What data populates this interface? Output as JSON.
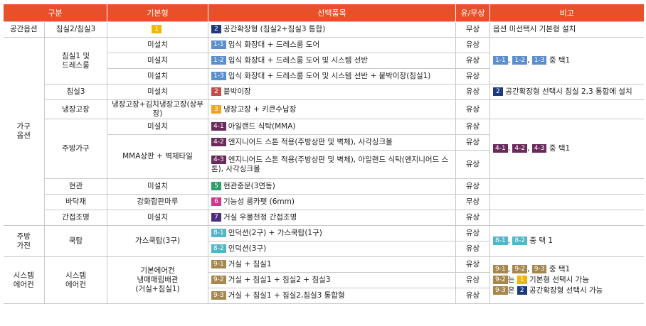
{
  "header": [
    "구분",
    "기본형",
    "선택품목",
    "유/무상",
    "비고"
  ],
  "rows": [
    {
      "group": "공간옵션",
      "sub": "침실2/침실3",
      "base_badge": {
        "code": "1",
        "color": "#f2b705"
      },
      "item_badge": {
        "code": "2",
        "color": "#1d3b7c"
      },
      "item": "공간확장형 (침실2+침실3 통합)",
      "pay": "무상",
      "note": [
        [
          {
            "text": "옵션 미선택시 기본형 설치"
          }
        ]
      ]
    },
    {
      "group": "가구\n옵션",
      "sub": "침실1 및\n드레스룸",
      "base": "미설치",
      "item_badge": {
        "code": "1-1",
        "color": "#5b8fcc"
      },
      "item": "입식 화장대 + 드레스룸 도어",
      "pay": "유상",
      "note": [
        [
          {
            "badge": {
              "code": "1-1",
              "color": "#5b8fcc"
            }
          },
          {
            "text": ", "
          },
          {
            "badge": {
              "code": "1-2",
              "color": "#5b8fcc"
            }
          },
          {
            "text": ", "
          },
          {
            "badge": {
              "code": "1-3",
              "color": "#5b8fcc"
            }
          },
          {
            "text": " 중 택1"
          }
        ]
      ]
    },
    {
      "base": "미설치",
      "item_badge": {
        "code": "1-2",
        "color": "#5b8fcc"
      },
      "item": "입식 화장대 + 드레스룸 도어 및 시스템 선반",
      "pay": "유상"
    },
    {
      "base": "미설치",
      "item_badge": {
        "code": "1-3",
        "color": "#5b8fcc"
      },
      "item": "입식 화장대 + 드레스룸 도어 및 시스템 선반 + 붙박이장(침실1)",
      "pay": "유상"
    },
    {
      "sub": "침실3",
      "base": "미설치",
      "item_badge": {
        "code": "2",
        "color": "#c24d49"
      },
      "item": "붙박이장",
      "pay": "유상",
      "note": [
        [
          {
            "badge": {
              "code": "2",
              "color": "#1d3b7c"
            }
          },
          {
            "text": " 공간확장형 선택시 침실 2,3 통합에 설치"
          }
        ]
      ]
    },
    {
      "sub": "냉장고장",
      "base": "냉장고장+김치냉장고장(상부장)",
      "item_badge": {
        "code": "3",
        "color": "#f0a424"
      },
      "item": "냉장고장 + 키큰수납장",
      "pay": "유상"
    },
    {
      "sub": "주방가구",
      "base": "미설치",
      "item_badge": {
        "code": "4-1",
        "color": "#6a2a5c"
      },
      "item": "아일랜드 식탁(MMA)",
      "pay": "유상",
      "note": [
        [
          {
            "badge": {
              "code": "4-1",
              "color": "#6a2a5c"
            }
          },
          {
            "text": ", "
          },
          {
            "badge": {
              "code": "4-2",
              "color": "#6a2a5c"
            }
          },
          {
            "text": ", "
          },
          {
            "badge": {
              "code": "4-3",
              "color": "#6a2a5c"
            }
          },
          {
            "text": " 중 택1"
          }
        ]
      ]
    },
    {
      "base": "MMA상판 + 벽체타일",
      "item_badge": {
        "code": "4-2",
        "color": "#6a2a5c"
      },
      "item": "엔지니어드 스톤 적용(주방상판 및 벽체), 사각싱크볼",
      "pay": "유상"
    },
    {
      "item_badge": {
        "code": "4-3",
        "color": "#6a2a5c"
      },
      "item": "엔지니어드 스톤 적용(주방상판 및 벽체), 아일랜드 식탁(엔지니어드 스톤), 사각싱크볼",
      "pay": "유상"
    },
    {
      "sub": "현관",
      "base": "미설치",
      "item_badge": {
        "code": "5",
        "color": "#2f9e6a"
      },
      "item": "현관중문(3연동)",
      "pay": "유상"
    },
    {
      "sub": "바닥재",
      "base": "강화합판마루",
      "item_badge": {
        "code": "6",
        "color": "#d3358c"
      },
      "item": "기능성 룸카펫 (6mm)",
      "pay": "무상"
    },
    {
      "sub": "간접조명",
      "base": "미설치",
      "item_badge": {
        "code": "7",
        "color": "#4a2c80"
      },
      "item": "거실 우물천정 간접조명",
      "pay": "유상"
    },
    {
      "group": "주방\n가전",
      "sub": "쿡탑",
      "base": "가스쿡탑(3구)",
      "item_badge": {
        "code": "8-1",
        "color": "#56b4c9"
      },
      "item": "인덕션(2구) + 가스쿡탑(1구)",
      "pay": "유상",
      "note": [
        [
          {
            "badge": {
              "code": "8-1",
              "color": "#56b4c9"
            }
          },
          {
            "text": ", "
          },
          {
            "badge": {
              "code": "8-2",
              "color": "#56b4c9"
            }
          },
          {
            "text": " 중 택 1"
          }
        ]
      ]
    },
    {
      "item_badge": {
        "code": "8-2",
        "color": "#56b4c9"
      },
      "item": "인덕션(3구)",
      "pay": "유상"
    },
    {
      "group": "시스템\n에어컨",
      "sub": "시스템\n에어컨",
      "base": "기본에어컨\n냉매매립배관\n(거실+침실1)",
      "item_badge": {
        "code": "9-1",
        "color": "#a6874e"
      },
      "item": "거실 + 침실1",
      "pay": "유상",
      "note": [
        [
          {
            "badge": {
              "code": "9-1",
              "color": "#a6874e"
            }
          },
          {
            "text": ", "
          },
          {
            "badge": {
              "code": "9-2",
              "color": "#a6874e"
            }
          },
          {
            "text": ", "
          },
          {
            "badge": {
              "code": "9-3",
              "color": "#a6874e"
            }
          },
          {
            "text": " 중 택1"
          }
        ],
        [
          {
            "badge": {
              "code": "9-2",
              "color": "#a6874e"
            }
          },
          {
            "text": "는 "
          },
          {
            "badge": {
              "code": "1",
              "color": "#f2b705"
            }
          },
          {
            "text": " 기본형 선택시 가능"
          }
        ],
        [
          {
            "badge": {
              "code": "9-3",
              "color": "#a6874e"
            }
          },
          {
            "text": "은 "
          },
          {
            "badge": {
              "code": "2",
              "color": "#1d3b7c"
            }
          },
          {
            "text": " 공간확장형 선택시 가능"
          }
        ]
      ]
    },
    {
      "item_badge": {
        "code": "9-2",
        "color": "#a6874e"
      },
      "item": "거실 + 침실1 + 침실2 + 침실3",
      "pay": "유상"
    },
    {
      "item_badge": {
        "code": "9-3",
        "color": "#a6874e"
      },
      "item": "거실 + 침실1 + 침실2,침실3 통합형",
      "pay": "유상"
    }
  ]
}
